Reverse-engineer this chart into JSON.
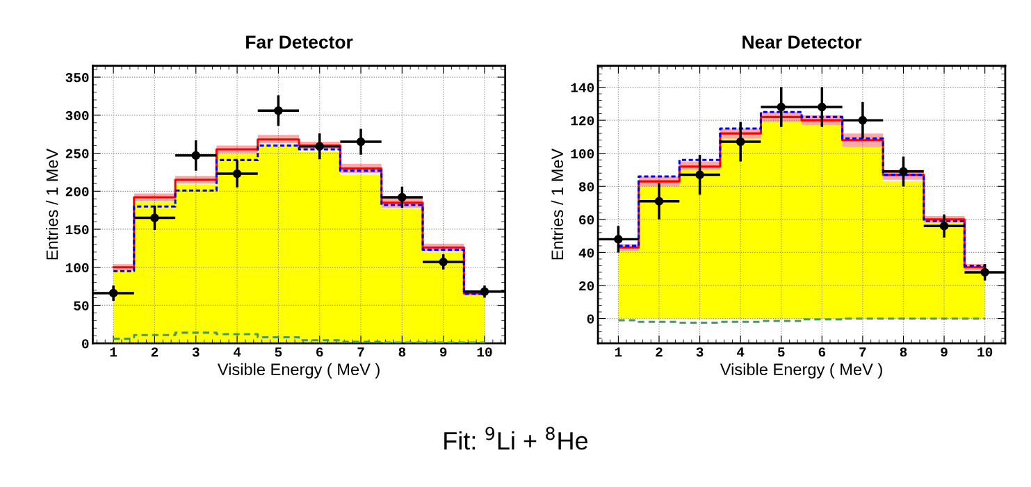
{
  "chart_data": [
    {
      "type": "step",
      "title": "Far Detector",
      "xlabel": "Visible Energy ( MeV )",
      "ylabel": "Entries / 1 MeV",
      "x": [
        1,
        2,
        3,
        4,
        5,
        6,
        7,
        8,
        9,
        10
      ],
      "xlim": [
        0.5,
        10.5
      ],
      "xticks": [
        1,
        2,
        3,
        4,
        5,
        6,
        7,
        8,
        9,
        10
      ],
      "ylim": [
        0,
        365
      ],
      "yticks": [
        0,
        50,
        100,
        150,
        200,
        250,
        300,
        350
      ],
      "grid": true,
      "series": [
        {
          "type": "area",
          "color": "#ffff00",
          "values": [
            95,
            186,
            209,
            249,
            262,
            252,
            222,
            177,
            120,
            63
          ]
        },
        {
          "color": "#ff0000",
          "values": [
            100,
            192,
            215,
            255,
            268,
            260,
            230,
            185,
            126,
            66
          ],
          "lower": [
            96,
            187,
            210,
            250,
            263,
            255,
            224,
            178,
            121,
            63
          ],
          "upper": [
            104,
            197,
            220,
            260,
            274,
            265,
            236,
            192,
            131,
            69
          ],
          "line_style": "solid"
        },
        {
          "color": "#0000ff",
          "values": [
            95,
            180,
            201,
            241,
            260,
            255,
            227,
            182,
            123,
            65
          ],
          "line_style": "dotted"
        },
        {
          "color": "#4a9a5a",
          "values": [
            6,
            11,
            14,
            12,
            8,
            4,
            2,
            1,
            1,
            1
          ],
          "line_style": "dashed"
        },
        {
          "type": "scatter",
          "color": "#000000",
          "marker": "circle",
          "values": [
            66,
            165,
            247,
            223,
            306,
            259,
            265,
            192,
            107,
            68
          ],
          "errors": [
            10,
            16,
            20,
            18,
            20,
            17,
            17,
            14,
            10,
            8
          ],
          "xerrors": [
            0.5,
            0.5,
            0.5,
            0.5,
            0.5,
            0.5,
            0.5,
            0.5,
            0.5,
            0.5
          ]
        }
      ],
      "annotations": [
        "Fit: $^{9}$Li + $^{8}$He"
      ]
    },
    {
      "type": "step",
      "title": "Near Detector",
      "xlabel": "Visible Energy ( MeV )",
      "ylabel": "Entries / 1 MeV",
      "x": [
        1,
        2,
        3,
        4,
        5,
        6,
        7,
        8,
        9,
        10
      ],
      "xlim": [
        0.5,
        10.5
      ],
      "xticks": [
        1,
        2,
        3,
        4,
        5,
        6,
        7,
        8,
        9,
        10
      ],
      "ylim": [
        -15,
        153
      ],
      "yticks": [
        0,
        20,
        40,
        60,
        80,
        100,
        120,
        140
      ],
      "grid": true,
      "series": [
        {
          "type": "area",
          "color": "#ffff00",
          "values": [
            41,
            80,
            90,
            109,
            119,
            117,
            104,
            83,
            58,
            29
          ]
        },
        {
          "color": "#ff0000",
          "values": [
            43,
            83,
            92,
            112,
            122,
            120,
            108,
            87,
            60,
            31
          ],
          "lower": [
            41,
            80,
            90,
            109,
            119,
            117,
            104,
            84,
            58,
            29
          ],
          "upper": [
            45,
            86,
            95,
            115,
            125,
            123,
            112,
            90,
            62,
            33
          ],
          "line_style": "solid"
        },
        {
          "color": "#0000ff",
          "values": [
            44,
            86,
            96,
            115,
            125,
            122,
            109,
            87,
            59,
            32
          ],
          "line_style": "dotted"
        },
        {
          "color": "#4a9a5a",
          "values": [
            -1,
            -2,
            -2.5,
            -2,
            -1.5,
            -0.5,
            0,
            0,
            0,
            0
          ],
          "line_style": "dashed"
        },
        {
          "type": "scatter",
          "color": "#000000",
          "marker": "circle",
          "values": [
            48,
            71,
            87,
            107,
            128,
            128,
            120,
            89,
            56,
            28
          ],
          "errors": [
            8,
            11,
            12,
            12,
            12,
            12,
            11,
            9,
            7,
            5
          ],
          "xerrors": [
            0.5,
            0.5,
            0.5,
            0.5,
            0.5,
            0.5,
            0.5,
            0.5,
            0.5,
            0.5
          ]
        }
      ]
    }
  ]
}
